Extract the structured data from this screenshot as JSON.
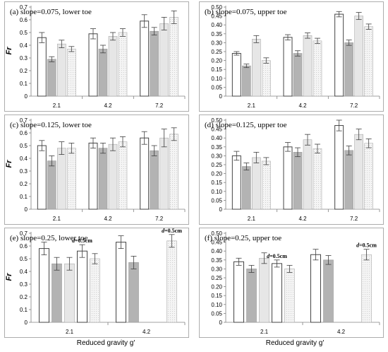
{
  "figure": {
    "y_label": "Fr",
    "x_label": "Reduced gravity g′"
  },
  "colors": {
    "white": "#ffffff",
    "dark": "#b3b3b3",
    "light": "#e6e6e6",
    "hatch": "#f2f2f2",
    "axis": "#808080",
    "errorbar": "#404040"
  },
  "chart_data": [
    {
      "type": "bar",
      "title": "(a) slope=0.075, lower toe",
      "categories": [
        "2.1",
        "4.2",
        "7.2"
      ],
      "ylim": [
        0,
        0.7
      ],
      "yticks": [
        0,
        0.1,
        0.2,
        0.3,
        0.4,
        0.5,
        0.6,
        0.7
      ],
      "tick_decimals": 1,
      "series": [
        {
          "style": "white",
          "values": [
            0.46,
            0.49,
            0.59
          ],
          "errors": [
            0.04,
            0.04,
            0.05
          ]
        },
        {
          "style": "dark",
          "values": [
            0.29,
            0.37,
            0.51
          ],
          "errors": [
            0.02,
            0.03,
            0.03
          ]
        },
        {
          "style": "light",
          "values": [
            0.41,
            0.47,
            0.57
          ],
          "errors": [
            0.03,
            0.03,
            0.05
          ]
        },
        {
          "style": "hatch",
          "values": [
            0.37,
            0.5,
            0.62
          ],
          "errors": [
            0.02,
            0.03,
            0.05
          ]
        }
      ]
    },
    {
      "type": "bar",
      "title": "(b) slope=0.075, upper toe",
      "categories": [
        "2.1",
        "4.2",
        "7.2"
      ],
      "ylim": [
        0,
        0.5
      ],
      "yticks": [
        0,
        0.05,
        0.1,
        0.15,
        0.2,
        0.25,
        0.3,
        0.35,
        0.4,
        0.45,
        0.5
      ],
      "tick_decimals": 2,
      "series": [
        {
          "style": "white",
          "values": [
            0.24,
            0.33,
            0.46
          ],
          "errors": [
            0.01,
            0.015,
            0.015
          ]
        },
        {
          "style": "dark",
          "values": [
            0.17,
            0.24,
            0.3
          ],
          "errors": [
            0.01,
            0.015,
            0.015
          ]
        },
        {
          "style": "light",
          "values": [
            0.32,
            0.34,
            0.45
          ],
          "errors": [
            0.02,
            0.015,
            0.02
          ]
        },
        {
          "style": "hatch",
          "values": [
            0.2,
            0.31,
            0.39
          ],
          "errors": [
            0.015,
            0.015,
            0.015
          ]
        }
      ]
    },
    {
      "type": "bar",
      "title": "(c) slope=0.125, lower toe",
      "categories": [
        "2.1",
        "4.2",
        "7.2"
      ],
      "ylim": [
        0,
        0.7
      ],
      "yticks": [
        0,
        0.1,
        0.2,
        0.3,
        0.4,
        0.5,
        0.6,
        0.7
      ],
      "tick_decimals": 1,
      "series": [
        {
          "style": "white",
          "values": [
            0.5,
            0.52,
            0.56
          ],
          "errors": [
            0.04,
            0.04,
            0.05
          ]
        },
        {
          "style": "dark",
          "values": [
            0.38,
            0.48,
            0.46
          ],
          "errors": [
            0.04,
            0.04,
            0.04
          ]
        },
        {
          "style": "light",
          "values": [
            0.48,
            0.51,
            0.56
          ],
          "errors": [
            0.05,
            0.05,
            0.07
          ]
        },
        {
          "style": "hatch",
          "values": [
            0.48,
            0.53,
            0.59
          ],
          "errors": [
            0.04,
            0.04,
            0.05
          ]
        }
      ]
    },
    {
      "type": "bar",
      "title": "(d) slope=0.125, upper toe",
      "categories": [
        "2.1",
        "4.2",
        "7.2"
      ],
      "ylim": [
        0,
        0.5
      ],
      "yticks": [
        0,
        0.05,
        0.1,
        0.15,
        0.2,
        0.25,
        0.3,
        0.35,
        0.4,
        0.45,
        0.5
      ],
      "tick_decimals": 2,
      "series": [
        {
          "style": "white",
          "values": [
            0.3,
            0.35,
            0.47
          ],
          "errors": [
            0.025,
            0.025,
            0.03
          ]
        },
        {
          "style": "dark",
          "values": [
            0.24,
            0.32,
            0.33
          ],
          "errors": [
            0.02,
            0.025,
            0.025
          ]
        },
        {
          "style": "light",
          "values": [
            0.29,
            0.39,
            0.42
          ],
          "errors": [
            0.03,
            0.03,
            0.03
          ]
        },
        {
          "style": "hatch",
          "values": [
            0.27,
            0.34,
            0.37
          ],
          "errors": [
            0.02,
            0.025,
            0.025
          ]
        }
      ]
    },
    {
      "type": "bar",
      "title": "(e) slope=0.25, lower toe",
      "categories": [
        "2.1",
        "4.2"
      ],
      "ylim": [
        0,
        0.7
      ],
      "yticks": [
        0,
        0.1,
        0.2,
        0.3,
        0.4,
        0.5,
        0.6,
        0.7
      ],
      "tick_decimals": 1,
      "series": [
        {
          "style": "white",
          "values": [
            0.58,
            0.63
          ],
          "errors": [
            0.05,
            0.05
          ]
        },
        {
          "style": "dark",
          "values": [
            0.46,
            0.47
          ],
          "errors": [
            0.05,
            0.05
          ]
        },
        {
          "style": "light",
          "values": [
            0.46,
            null
          ],
          "errors": [
            0.05,
            null
          ]
        },
        {
          "style": "white",
          "values": [
            0.56,
            null
          ],
          "errors": [
            0.05,
            null
          ]
        },
        {
          "style": "hatch",
          "values": [
            0.5,
            0.64
          ],
          "errors": [
            0.04,
            0.05
          ]
        }
      ],
      "annotations": [
        {
          "text": "d=0.5cm",
          "category": 0,
          "series": 3
        },
        {
          "text": "d=0.5cm",
          "category": 1,
          "series": 4
        }
      ]
    },
    {
      "type": "bar",
      "title": "(f) slope=0.25, upper toe",
      "categories": [
        "2.1",
        "4.2"
      ],
      "ylim": [
        0,
        0.5
      ],
      "yticks": [
        0,
        0.05,
        0.1,
        0.15,
        0.2,
        0.25,
        0.3,
        0.35,
        0.4,
        0.45,
        0.5
      ],
      "tick_decimals": 2,
      "series": [
        {
          "style": "white",
          "values": [
            0.34,
            0.38
          ],
          "errors": [
            0.02,
            0.03
          ]
        },
        {
          "style": "dark",
          "values": [
            0.3,
            0.35
          ],
          "errors": [
            0.02,
            0.025
          ]
        },
        {
          "style": "light",
          "values": [
            0.36,
            null
          ],
          "errors": [
            0.03,
            null
          ]
        },
        {
          "style": "white",
          "values": [
            0.33,
            null
          ],
          "errors": [
            0.02,
            null
          ]
        },
        {
          "style": "hatch",
          "values": [
            0.3,
            0.38
          ],
          "errors": [
            0.02,
            0.03
          ]
        }
      ],
      "annotations": [
        {
          "text": "d=0.5cm",
          "category": 0,
          "series": 3
        },
        {
          "text": "d=0.5cm",
          "category": 1,
          "series": 4
        }
      ]
    }
  ]
}
